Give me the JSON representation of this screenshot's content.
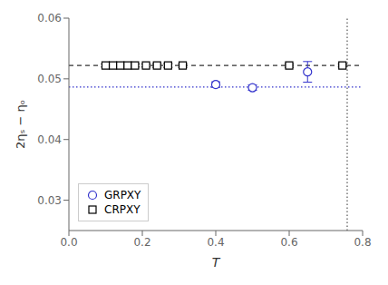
{
  "chart_data": {
    "type": "scatter",
    "xlabel": "T",
    "ylabel": "2ηₛ − ηₒ",
    "xlim": [
      0.0,
      0.8
    ],
    "ylim": [
      0.025,
      0.06
    ],
    "xticks": [
      {
        "value": 0.0,
        "label": "0.0"
      },
      0.2,
      0.4,
      0.6,
      0.8
    ],
    "yticks": [
      0.03,
      0.04,
      0.05,
      0.06
    ],
    "grid": false,
    "legend": "lower left",
    "series": [
      {
        "name": "GRPXY",
        "color": "#3333cc",
        "marker": "circle",
        "x": [
          0.4,
          0.5,
          0.65
        ],
        "values": [
          0.04905,
          0.04855,
          0.05115
        ],
        "yerr": [
          0.00045,
          0.00045,
          0.0017
        ]
      },
      {
        "name": "CRPXY",
        "color": "black",
        "marker": "square",
        "x": [
          0.1,
          0.12,
          0.14,
          0.16,
          0.18,
          0.21,
          0.24,
          0.27,
          0.31,
          0.6,
          0.745
        ],
        "values": [
          0.0522,
          0.0522,
          0.0522,
          0.0522,
          0.0522,
          0.0522,
          0.0522,
          0.0522,
          0.0522,
          0.0522,
          0.0522
        ],
        "yerr": [
          0.00025,
          0.00025,
          0.00025,
          0.00025,
          0.00025,
          0.00025,
          0.0003,
          0.0003,
          0.0003,
          0.0003,
          0.00025
        ]
      }
    ],
    "hlines": [
      {
        "y": 0.0522,
        "color": "#333333",
        "line_style": "dashed"
      },
      {
        "y": 0.04865,
        "color": "#3333cc",
        "line_style": "dotted"
      }
    ],
    "vlines": [
      {
        "x": 0.758,
        "color": "#555555",
        "line_style": "dotted"
      }
    ]
  }
}
